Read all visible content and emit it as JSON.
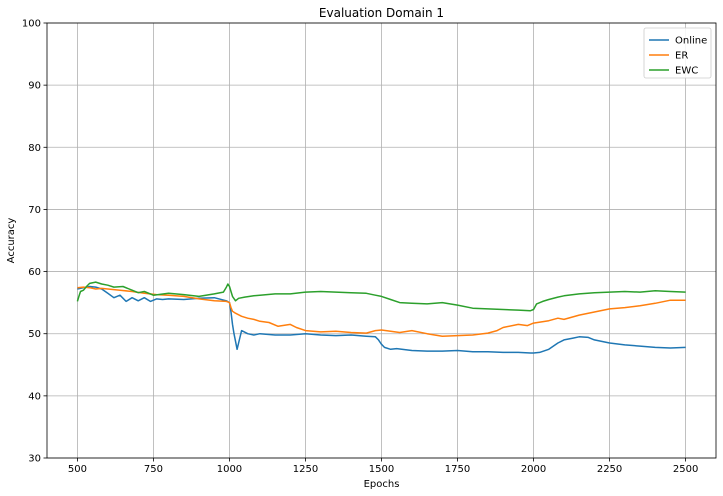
{
  "chart_data": {
    "type": "line",
    "title": "Evaluation Domain 1",
    "xlabel": "Epochs",
    "ylabel": "Accuracy",
    "xlim": [
      400,
      2600
    ],
    "ylim": [
      30,
      100
    ],
    "xticks": [
      500,
      750,
      1000,
      1250,
      1500,
      1750,
      2000,
      2250,
      2500
    ],
    "yticks": [
      30,
      40,
      50,
      60,
      70,
      80,
      90,
      100
    ],
    "grid": true,
    "legend_position": "top-right",
    "series": [
      {
        "name": "Online",
        "color": "#1f77b4",
        "x": [
          500,
          520,
          540,
          560,
          580,
          600,
          620,
          640,
          660,
          680,
          700,
          720,
          740,
          760,
          780,
          800,
          850,
          900,
          950,
          990,
          1000,
          1005,
          1010,
          1015,
          1020,
          1025,
          1030,
          1040,
          1060,
          1080,
          1100,
          1150,
          1200,
          1250,
          1300,
          1350,
          1400,
          1450,
          1480,
          1490,
          1500,
          1510,
          1530,
          1550,
          1600,
          1650,
          1700,
          1750,
          1800,
          1850,
          1900,
          1950,
          1990,
          2000,
          2020,
          2050,
          2080,
          2100,
          2130,
          2150,
          2180,
          2200,
          2250,
          2300,
          2350,
          2400,
          2450,
          2500
        ],
        "y": [
          57.2,
          57.4,
          57.6,
          57.5,
          57.2,
          56.5,
          55.8,
          56.2,
          55.2,
          55.8,
          55.3,
          55.8,
          55.2,
          55.6,
          55.5,
          55.6,
          55.5,
          55.7,
          55.8,
          55.3,
          55.0,
          53.5,
          51.5,
          50.0,
          48.8,
          47.5,
          48.5,
          50.5,
          50.0,
          49.8,
          50.0,
          49.8,
          49.8,
          50.0,
          49.8,
          49.7,
          49.8,
          49.6,
          49.5,
          49.0,
          48.3,
          47.8,
          47.5,
          47.6,
          47.3,
          47.2,
          47.2,
          47.3,
          47.1,
          47.1,
          47.0,
          47.0,
          46.9,
          46.9,
          47.0,
          47.5,
          48.5,
          49.0,
          49.3,
          49.5,
          49.4,
          49.0,
          48.5,
          48.2,
          48.0,
          47.8,
          47.7,
          47.8
        ]
      },
      {
        "name": "ER",
        "color": "#ff7f0e",
        "x": [
          500,
          520,
          540,
          560,
          580,
          600,
          640,
          680,
          720,
          760,
          800,
          850,
          900,
          950,
          990,
          1000,
          1005,
          1010,
          1020,
          1040,
          1060,
          1080,
          1100,
          1130,
          1160,
          1200,
          1220,
          1250,
          1300,
          1350,
          1400,
          1450,
          1480,
          1500,
          1530,
          1560,
          1600,
          1650,
          1700,
          1750,
          1800,
          1850,
          1880,
          1900,
          1950,
          1980,
          2000,
          2050,
          2080,
          2100,
          2150,
          2200,
          2250,
          2300,
          2350,
          2400,
          2450,
          2500
        ],
        "y": [
          57.4,
          57.5,
          57.4,
          57.2,
          57.3,
          57.2,
          57.0,
          56.8,
          56.5,
          56.3,
          56.2,
          56.0,
          55.6,
          55.3,
          55.2,
          55.0,
          54.2,
          53.6,
          53.3,
          52.8,
          52.5,
          52.3,
          52.0,
          51.8,
          51.2,
          51.5,
          51.0,
          50.5,
          50.3,
          50.4,
          50.2,
          50.1,
          50.5,
          50.6,
          50.4,
          50.2,
          50.5,
          50.0,
          49.6,
          49.7,
          49.8,
          50.1,
          50.5,
          51.0,
          51.5,
          51.3,
          51.7,
          52.1,
          52.5,
          52.3,
          53.0,
          53.5,
          54.0,
          54.2,
          54.5,
          54.9,
          55.4,
          55.4
        ]
      },
      {
        "name": "EWC",
        "color": "#2ca02c",
        "x": [
          500,
          505,
          510,
          520,
          530,
          540,
          560,
          580,
          600,
          620,
          650,
          680,
          700,
          720,
          750,
          800,
          850,
          900,
          950,
          980,
          990,
          995,
          1000,
          1005,
          1010,
          1020,
          1030,
          1050,
          1080,
          1100,
          1150,
          1200,
          1250,
          1300,
          1350,
          1400,
          1450,
          1480,
          1500,
          1530,
          1560,
          1600,
          1650,
          1700,
          1750,
          1800,
          1850,
          1900,
          1950,
          1990,
          2000,
          2010,
          2030,
          2050,
          2080,
          2100,
          2150,
          2200,
          2250,
          2300,
          2350,
          2400,
          2450,
          2500
        ],
        "y": [
          55.2,
          56.0,
          56.8,
          57.0,
          57.6,
          58.1,
          58.3,
          58.0,
          57.8,
          57.5,
          57.6,
          57.0,
          56.6,
          56.8,
          56.2,
          56.5,
          56.3,
          56.0,
          56.4,
          56.7,
          57.5,
          58.0,
          57.6,
          56.8,
          56.0,
          55.3,
          55.7,
          55.9,
          56.1,
          56.2,
          56.4,
          56.4,
          56.7,
          56.8,
          56.7,
          56.6,
          56.5,
          56.2,
          56.0,
          55.5,
          55.0,
          54.9,
          54.8,
          55.0,
          54.6,
          54.1,
          54.0,
          53.9,
          53.8,
          53.7,
          53.9,
          54.8,
          55.2,
          55.5,
          55.9,
          56.1,
          56.4,
          56.6,
          56.7,
          56.8,
          56.7,
          56.9,
          56.8,
          56.7
        ]
      }
    ]
  }
}
